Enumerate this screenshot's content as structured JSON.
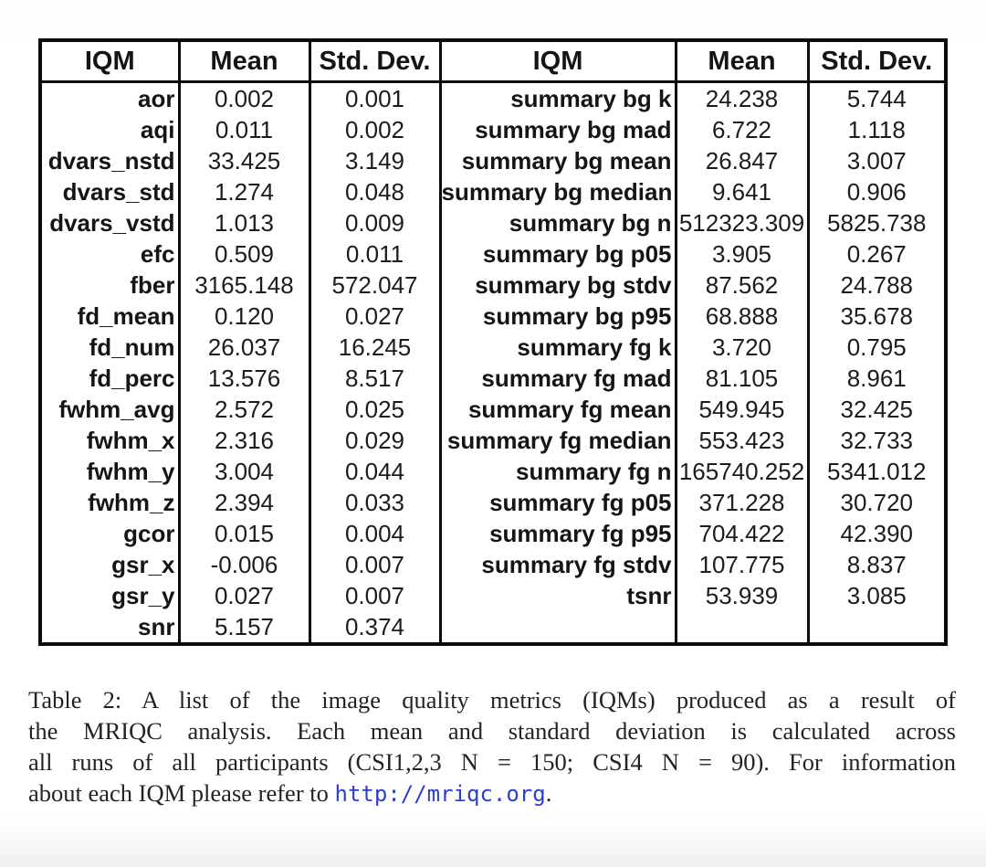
{
  "colors": {
    "border": "#0b0b0b",
    "text": "#151515",
    "link_blue": "#2c3fd2"
  },
  "table": {
    "headers": [
      "IQM",
      "Mean",
      "Std. Dev.",
      "IQM",
      "Mean",
      "Std. Dev."
    ],
    "left_rows": [
      {
        "iqm": "aor",
        "mean": "0.002",
        "std": "0.001"
      },
      {
        "iqm": "aqi",
        "mean": "0.011",
        "std": "0.002"
      },
      {
        "iqm": "dvars_nstd",
        "mean": "33.425",
        "std": "3.149"
      },
      {
        "iqm": "dvars_std",
        "mean": "1.274",
        "std": "0.048"
      },
      {
        "iqm": "dvars_vstd",
        "mean": "1.013",
        "std": "0.009"
      },
      {
        "iqm": "efc",
        "mean": "0.509",
        "std": "0.011"
      },
      {
        "iqm": "fber",
        "mean": "3165.148",
        "std": "572.047"
      },
      {
        "iqm": "fd_mean",
        "mean": "0.120",
        "std": "0.027"
      },
      {
        "iqm": "fd_num",
        "mean": "26.037",
        "std": "16.245"
      },
      {
        "iqm": "fd_perc",
        "mean": "13.576",
        "std": "8.517"
      },
      {
        "iqm": "fwhm_avg",
        "mean": "2.572",
        "std": "0.025"
      },
      {
        "iqm": "fwhm_x",
        "mean": "2.316",
        "std": "0.029"
      },
      {
        "iqm": "fwhm_y",
        "mean": "3.004",
        "std": "0.044"
      },
      {
        "iqm": "fwhm_z",
        "mean": "2.394",
        "std": "0.033"
      },
      {
        "iqm": "gcor",
        "mean": "0.015",
        "std": "0.004"
      },
      {
        "iqm": "gsr_x",
        "mean": "-0.006",
        "std": "0.007"
      },
      {
        "iqm": "gsr_y",
        "mean": "0.027",
        "std": "0.007"
      },
      {
        "iqm": "snr",
        "mean": "5.157",
        "std": "0.374"
      }
    ],
    "right_rows": [
      {
        "iqm": "summary bg k",
        "mean": "24.238",
        "std": "5.744"
      },
      {
        "iqm": "summary bg mad",
        "mean": "6.722",
        "std": "1.118"
      },
      {
        "iqm": "summary bg mean",
        "mean": "26.847",
        "std": "3.007"
      },
      {
        "iqm": "summary bg median",
        "mean": "9.641",
        "std": "0.906"
      },
      {
        "iqm": "summary bg n",
        "mean": "512323.309",
        "std": "5825.738"
      },
      {
        "iqm": "summary bg p05",
        "mean": "3.905",
        "std": "0.267"
      },
      {
        "iqm": "summary bg stdv",
        "mean": "87.562",
        "std": "24.788"
      },
      {
        "iqm": "summary bg p95",
        "mean": "68.888",
        "std": "35.678"
      },
      {
        "iqm": "summary fg k",
        "mean": "3.720",
        "std": "0.795"
      },
      {
        "iqm": "summary fg mad",
        "mean": "81.105",
        "std": "8.961"
      },
      {
        "iqm": "summary fg mean",
        "mean": "549.945",
        "std": "32.425"
      },
      {
        "iqm": "summary fg median",
        "mean": "553.423",
        "std": "32.733"
      },
      {
        "iqm": "summary fg n",
        "mean": "165740.252",
        "std": "5341.012"
      },
      {
        "iqm": "summary fg p05",
        "mean": "371.228",
        "std": "30.720"
      },
      {
        "iqm": "summary fg p95",
        "mean": "704.422",
        "std": "42.390"
      },
      {
        "iqm": "summary fg stdv",
        "mean": "107.775",
        "std": "8.837"
      },
      {
        "iqm": "tsnr",
        "mean": "53.939",
        "std": "3.085"
      }
    ]
  },
  "caption": {
    "lines": [
      "Table 2: A list of the image quality metrics (IQMs) produced as a result of",
      "the MRIQC analysis. Each mean and standard deviation is calculated across",
      "all runs of all participants (CSI1,2,3 N = 150; CSI4 N = 90). For information"
    ],
    "last_line_prefix": "about each IQM please refer to ",
    "url": "http://mriqc.org",
    "last_line_suffix": "."
  }
}
